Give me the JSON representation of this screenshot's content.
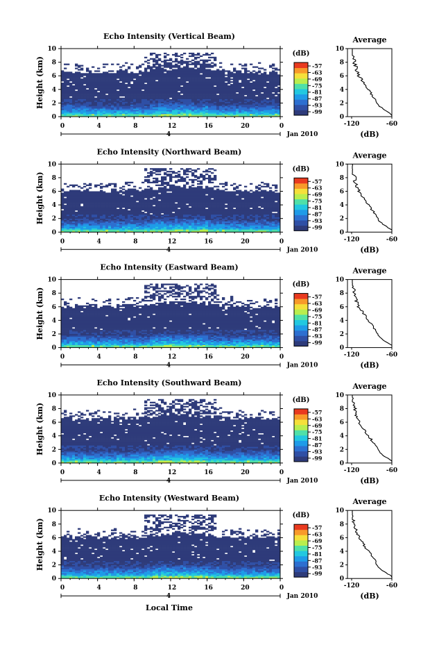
{
  "figure": {
    "xlabel": "Local Time",
    "ylabel": "Height (km)",
    "date_label": "Jan 2010",
    "day_label": "4",
    "colorbar_unit": "(dB)",
    "colorbar_ticks": [
      "-57",
      "-63",
      "-69",
      "-75",
      "-81",
      "-87",
      "-93",
      "-99"
    ],
    "profile_title": "Average",
    "profile_xlabel": "(dB)"
  },
  "colors": {
    "background_echo": "#2e3b7a",
    "colormap": [
      "#2e3b7a",
      "#2f4fa5",
      "#2d6fd0",
      "#1f9be8",
      "#22c8e0",
      "#4fe0a8",
      "#b9ee4e",
      "#f5e03a",
      "#f89a2a",
      "#e93a1f"
    ]
  },
  "chart_data": [
    {
      "type": "heatmap",
      "title": "Echo Intensity (Vertical Beam)",
      "xlabel": "Local Time",
      "ylabel": "Height (km)",
      "xlim": [
        0,
        24
      ],
      "ylim": [
        0,
        10
      ],
      "xticks": [
        "0",
        "4",
        "8",
        "12",
        "16",
        "20",
        "0"
      ],
      "yticks": [
        "0",
        "2",
        "4",
        "6",
        "8",
        "10"
      ],
      "colorbar": {
        "label": "(dB)",
        "range": [
          -99,
          -57
        ]
      },
      "echo_top_km": 6.5,
      "profile": {
        "title": "Average",
        "xlabel": "(dB)",
        "xlim": [
          -120,
          -60
        ],
        "xticks": [
          "-120",
          "-60"
        ],
        "yticks": [
          "0",
          "2",
          "4",
          "6",
          "8",
          "10"
        ]
      }
    },
    {
      "type": "heatmap",
      "title": "Echo Intensity (Northward Beam)",
      "xlabel": "Local Time",
      "ylabel": "Height (km)",
      "xlim": [
        0,
        24
      ],
      "ylim": [
        0,
        10
      ],
      "xticks": [
        "0",
        "4",
        "8",
        "12",
        "16",
        "20",
        "0"
      ],
      "yticks": [
        "0",
        "2",
        "4",
        "6",
        "8",
        "10"
      ],
      "colorbar": {
        "label": "(dB)",
        "range": [
          -99,
          -57
        ]
      },
      "echo_top_km": 6.0,
      "profile": {
        "title": "Average",
        "xlabel": "(dB)",
        "xlim": [
          -120,
          -60
        ],
        "xticks": [
          "-120",
          "-60"
        ],
        "yticks": [
          "0",
          "2",
          "4",
          "6",
          "8",
          "10"
        ]
      }
    },
    {
      "type": "heatmap",
      "title": "Echo Intensity (Eastward Beam)",
      "xlabel": "Local Time",
      "ylabel": "Height (km)",
      "xlim": [
        0,
        24
      ],
      "ylim": [
        0,
        10
      ],
      "xticks": [
        "0",
        "4",
        "8",
        "12",
        "16",
        "20",
        "0"
      ],
      "yticks": [
        "0",
        "2",
        "4",
        "6",
        "8",
        "10"
      ],
      "colorbar": {
        "label": "(dB)",
        "range": [
          -99,
          -57
        ]
      },
      "echo_top_km": 6.0,
      "profile": {
        "title": "Average",
        "xlabel": "(dB)",
        "xlim": [
          -120,
          -60
        ],
        "xticks": [
          "-120",
          "-60"
        ],
        "yticks": [
          "0",
          "2",
          "4",
          "6",
          "8",
          "10"
        ]
      }
    },
    {
      "type": "heatmap",
      "title": "Echo Intensity (Southward Beam)",
      "xlabel": "Local Time",
      "ylabel": "Height (km)",
      "xlim": [
        0,
        24
      ],
      "ylim": [
        0,
        10
      ],
      "xticks": [
        "0",
        "4",
        "8",
        "12",
        "16",
        "20",
        "0"
      ],
      "yticks": [
        "0",
        "2",
        "4",
        "6",
        "8",
        "10"
      ],
      "colorbar": {
        "label": "(dB)",
        "range": [
          -99,
          -57
        ]
      },
      "echo_top_km": 6.5,
      "profile": {
        "title": "Average",
        "xlabel": "(dB)",
        "xlim": [
          -120,
          -60
        ],
        "xticks": [
          "-120",
          "-60"
        ],
        "yticks": [
          "0",
          "2",
          "4",
          "6",
          "8",
          "10"
        ]
      }
    },
    {
      "type": "heatmap",
      "title": "Echo Intensity (Westward Beam)",
      "xlabel": "Local Time",
      "ylabel": "Height (km)",
      "xlim": [
        0,
        24
      ],
      "ylim": [
        0,
        10
      ],
      "xticks": [
        "0",
        "4",
        "8",
        "12",
        "16",
        "20",
        "0"
      ],
      "yticks": [
        "0",
        "2",
        "4",
        "6",
        "8",
        "10"
      ],
      "colorbar": {
        "label": "(dB)",
        "range": [
          -99,
          -57
        ]
      },
      "echo_top_km": 6.0,
      "profile": {
        "title": "Average",
        "xlabel": "(dB)",
        "xlim": [
          -120,
          -60
        ],
        "xticks": [
          "-120",
          "-60"
        ],
        "yticks": [
          "0",
          "2",
          "4",
          "6",
          "8",
          "10"
        ]
      }
    }
  ]
}
